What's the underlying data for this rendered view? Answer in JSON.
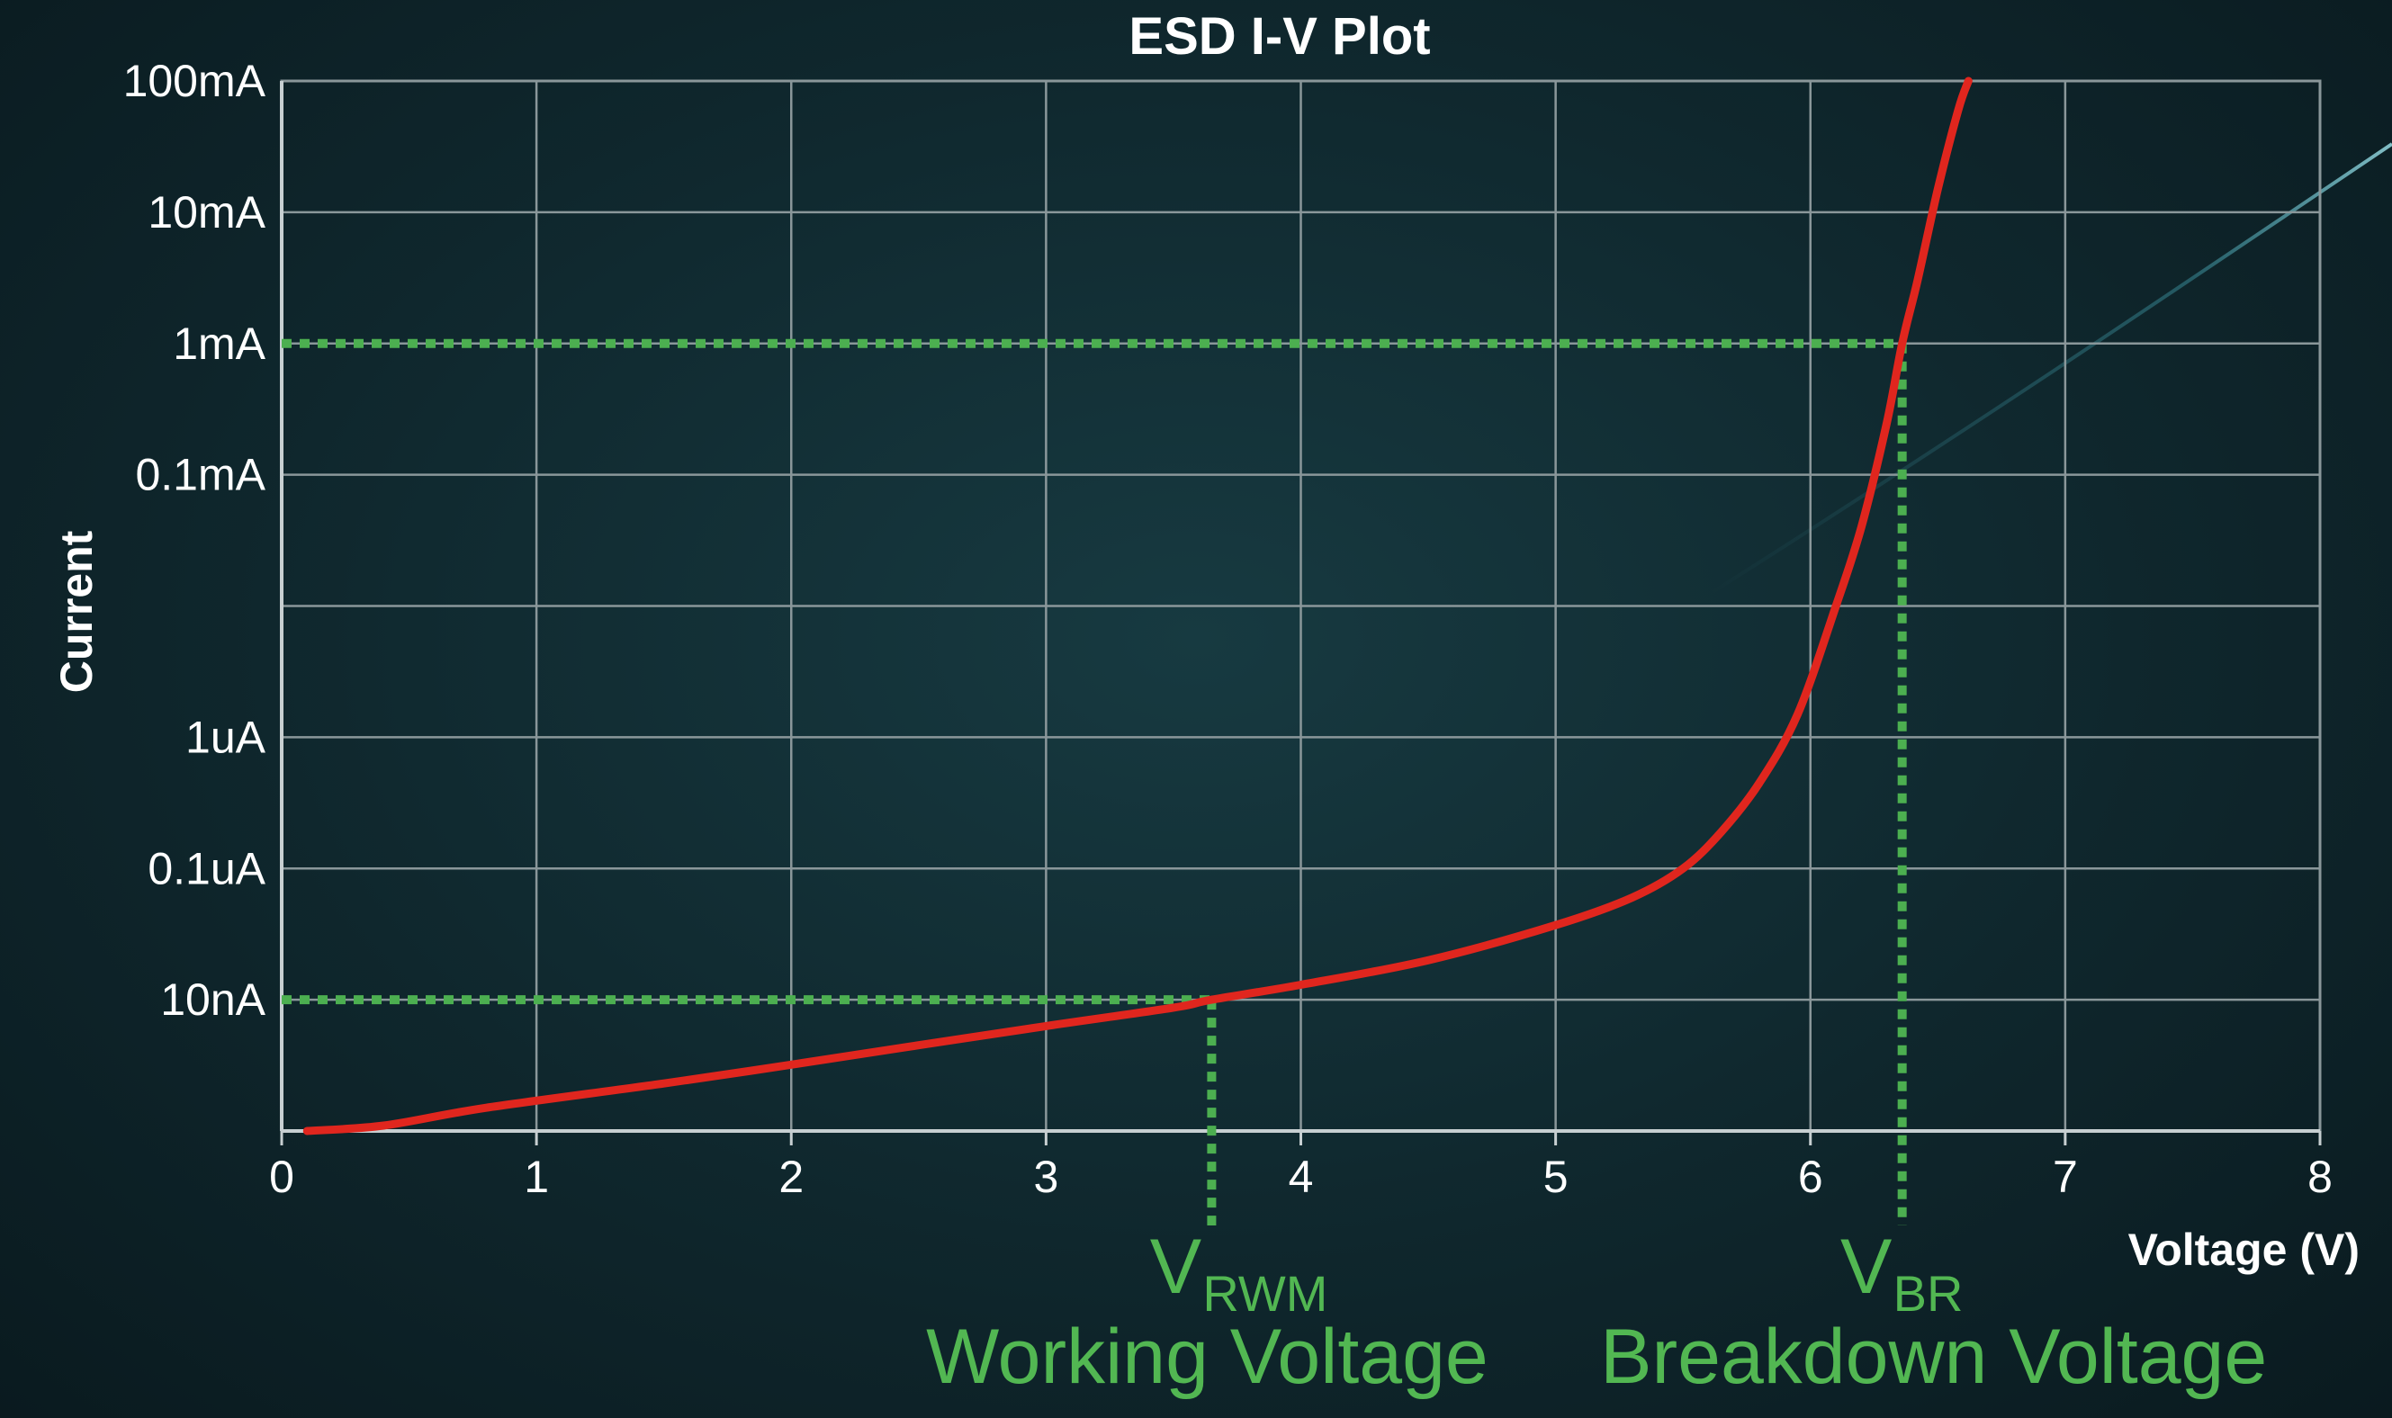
{
  "chart_data": {
    "type": "line",
    "title": "ESD I-V Plot",
    "xlabel": "Voltage (V)",
    "ylabel": "Current",
    "xlim": [
      0,
      8
    ],
    "x_ticks": [
      0,
      1,
      2,
      3,
      4,
      5,
      6,
      7,
      8
    ],
    "x_tick_labels": [
      "0",
      "1",
      "2",
      "3",
      "4",
      "5",
      "6",
      "7",
      "8"
    ],
    "y_scale": "log",
    "ylim_A": [
      1e-09,
      0.1
    ],
    "y_ticks_A": [
      1e-08,
      1e-07,
      1e-06,
      0.0001,
      0.001,
      0.01,
      0.1
    ],
    "y_tick_labels": [
      "10nA",
      "0.1uA",
      "1uA",
      "0.1mA",
      "1mA",
      "10mA",
      "100mA"
    ],
    "grid": true,
    "series": [
      {
        "color": "#e0261e",
        "x": [
          0.1,
          0.4,
          0.8,
          1.5,
          2.0,
          2.5,
          3.0,
          3.5,
          3.65,
          4.0,
          4.5,
          5.0,
          5.3,
          5.5,
          5.65,
          5.8,
          5.95,
          6.1,
          6.2,
          6.3,
          6.36,
          6.42,
          6.5,
          6.58,
          6.62
        ],
        "y_A": [
          1e-09,
          1.1e-09,
          1.5e-09,
          2.3e-09,
          3.2e-09,
          4.5e-09,
          6.3e-09,
          8.7e-09,
          1e-08,
          1.3e-08,
          2e-08,
          3.7e-08,
          6e-08,
          1e-07,
          1.9e-07,
          4.5e-07,
          1.5e-06,
          1e-05,
          4e-05,
          0.00025,
          0.001,
          0.003,
          0.015,
          0.06,
          0.1
        ]
      }
    ],
    "reference_lines": [
      {
        "y_A": 1e-08,
        "x_from": 0,
        "x_to": 3.65,
        "color": "#4caf50"
      },
      {
        "x": 3.65,
        "y_from_A": 1e-09,
        "y_to_A": 1e-08,
        "color": "#4caf50"
      },
      {
        "y_A": 0.001,
        "x_from": 0,
        "x_to": 6.36,
        "color": "#4caf50"
      },
      {
        "x": 6.36,
        "y_from_A": 1e-09,
        "y_to_A": 0.001,
        "color": "#4caf50"
      }
    ],
    "annotations": [
      {
        "x": 3.65,
        "symbol": "V",
        "subscript": "RWM",
        "label": "Working Voltage",
        "color": "#52b752"
      },
      {
        "x": 6.36,
        "symbol": "V",
        "subscript": "BR",
        "label": "Breakdown Voltage",
        "color": "#52b752"
      }
    ]
  },
  "colors": {
    "background": "#0f272d",
    "grid": "#8a979a",
    "axis": "#c7cfd1",
    "text": "#ffffff",
    "curve": "#e0261e",
    "guide": "#4caf50",
    "annotation": "#52b752",
    "streak": "#4fc0d0"
  }
}
